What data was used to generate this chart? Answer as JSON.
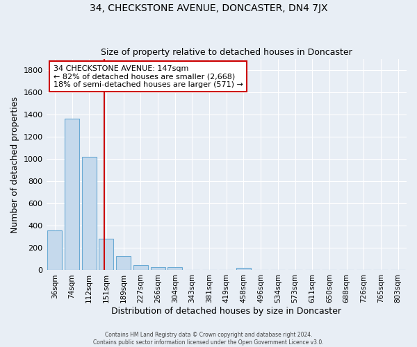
{
  "title1": "34, CHECKSTONE AVENUE, DONCASTER, DN4 7JX",
  "title2": "Size of property relative to detached houses in Doncaster",
  "xlabel": "Distribution of detached houses by size in Doncaster",
  "ylabel": "Number of detached properties",
  "bar_labels": [
    "36sqm",
    "74sqm",
    "112sqm",
    "151sqm",
    "189sqm",
    "227sqm",
    "266sqm",
    "304sqm",
    "343sqm",
    "381sqm",
    "419sqm",
    "458sqm",
    "496sqm",
    "534sqm",
    "573sqm",
    "611sqm",
    "650sqm",
    "688sqm",
    "726sqm",
    "765sqm",
    "803sqm"
  ],
  "bar_values": [
    360,
    1360,
    1020,
    285,
    130,
    45,
    30,
    25,
    0,
    0,
    0,
    20,
    0,
    0,
    0,
    0,
    0,
    0,
    0,
    0,
    0
  ],
  "bar_color": "#c5d9ec",
  "bar_edge_color": "#6aaad4",
  "vline_color": "#cc0000",
  "vline_pos": 2.9,
  "ylim": [
    0,
    1900
  ],
  "yticks": [
    0,
    200,
    400,
    600,
    800,
    1000,
    1200,
    1400,
    1600,
    1800
  ],
  "annotation_title": "34 CHECKSTONE AVENUE: 147sqm",
  "annotation_line1": "← 82% of detached houses are smaller (2,668)",
  "annotation_line2": "18% of semi-detached houses are larger (571) →",
  "footer1": "Contains HM Land Registry data © Crown copyright and database right 2024.",
  "footer2": "Contains public sector information licensed under the Open Government Licence v3.0.",
  "bg_color": "#e8eef5",
  "plot_bg_color": "#e8eef5",
  "grid_color": "#ffffff"
}
